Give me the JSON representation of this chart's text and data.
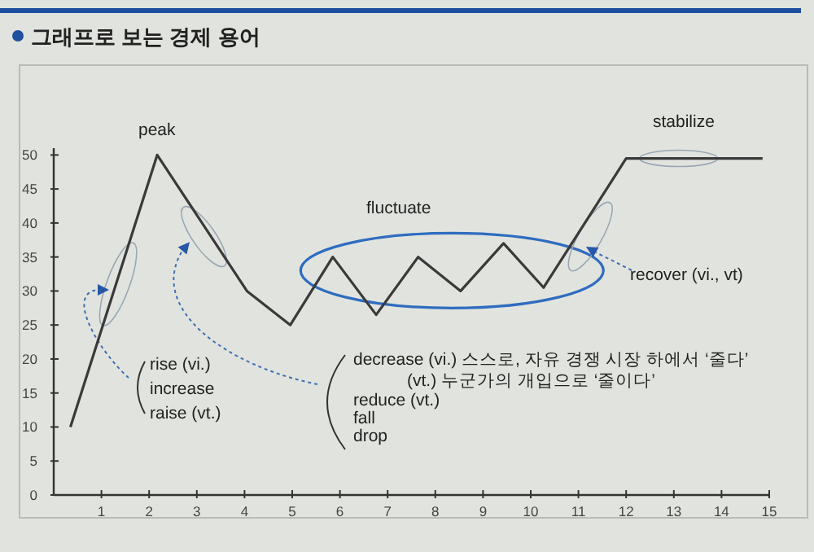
{
  "chart_data": {
    "type": "line",
    "title": "그래프로 보는 경제 용어",
    "x": [
      0.35,
      2.17,
      4.05,
      4.96,
      5.85,
      6.76,
      7.64,
      8.53,
      9.43,
      10.27,
      12.0,
      14.86
    ],
    "series": [
      {
        "color": "#3a3a3a",
        "values": [
          10,
          50,
          30,
          25,
          35,
          26.5,
          35,
          30,
          37,
          30.5,
          49.5,
          49.5
        ]
      }
    ],
    "xlim": [
      0,
      15
    ],
    "ylim": [
      0,
      51
    ],
    "xticks": [
      1,
      2,
      3,
      4,
      5,
      6,
      7,
      8,
      9,
      10,
      11,
      12,
      13,
      14,
      15
    ],
    "yticks": [
      0,
      5,
      10,
      15,
      20,
      25,
      30,
      35,
      40,
      45,
      50
    ],
    "grid": false,
    "marker": "none",
    "line_style": "solid",
    "annotations": [
      "peak",
      "fluctuate",
      "stabilize",
      "recover (vi., vt)",
      "rise (vi.)",
      "increase",
      "raise (vt.)",
      "decrease (vi.) 스스로, 자유 경쟁 시장 하에서 ‘줄다’",
      "(vt.) 누군가의 개입으로 ‘줄이다’",
      "reduce (vt.)",
      "fall",
      "drop"
    ]
  }
}
